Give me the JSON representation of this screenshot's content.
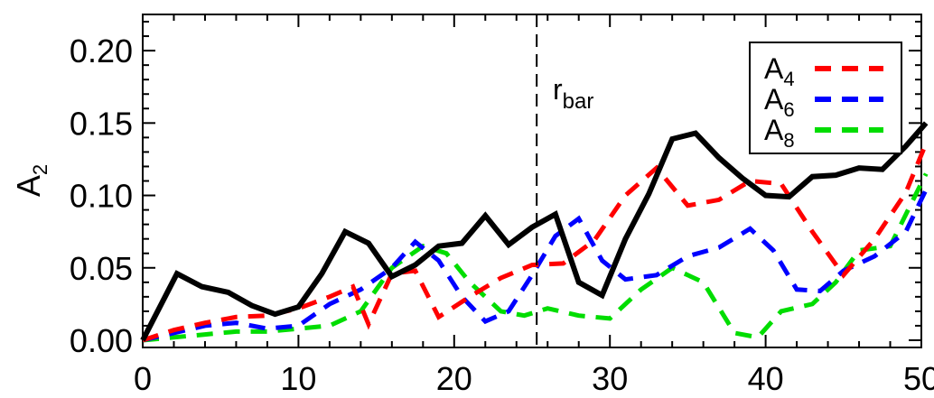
{
  "chart_data": {
    "type": "line",
    "title": "",
    "xlabel": "",
    "ylabel": {
      "main": "A",
      "sub": "2"
    },
    "xlim": [
      0,
      50
    ],
    "ylim": [
      -0.005,
      0.225
    ],
    "xticks": [
      "0",
      "10",
      "20",
      "30",
      "40",
      "50"
    ],
    "yticks": [
      "0.00",
      "0.05",
      "0.10",
      "0.15",
      "0.20"
    ],
    "grid": false,
    "legend_position": "top-right",
    "annotation": {
      "main": "r",
      "sub": "bar",
      "x": 25.3
    },
    "series": [
      {
        "color": "#000000",
        "style": "solid",
        "x": [
          0,
          2.2,
          3.8,
          5.5,
          7,
          8.5,
          10,
          11.5,
          13,
          14.5,
          16,
          17.5,
          19,
          20.5,
          22,
          23.5,
          25,
          26.5,
          28,
          29.5,
          31,
          32.5,
          34,
          35.5,
          37,
          38.5,
          40,
          41.5,
          43,
          44.5,
          46,
          47.5,
          49,
          50.5
        ],
        "y": [
          0.0,
          0.046,
          0.037,
          0.033,
          0.024,
          0.018,
          0.023,
          0.046,
          0.075,
          0.067,
          0.044,
          0.052,
          0.065,
          0.067,
          0.086,
          0.066,
          0.078,
          0.087,
          0.04,
          0.031,
          0.07,
          0.101,
          0.139,
          0.143,
          0.126,
          0.112,
          0.1,
          0.099,
          0.113,
          0.114,
          0.119,
          0.118,
          0.134,
          0.15
        ]
      },
      {
        "name": {
          "main": "A",
          "sub": "4"
        },
        "color": "#ff0000",
        "style": "dashed",
        "x": [
          0,
          2,
          4,
          6,
          8,
          10,
          12,
          13.5,
          14.5,
          16,
          17.5,
          19,
          21,
          23,
          25,
          27,
          29,
          31,
          33,
          35,
          37,
          39,
          41,
          43,
          45,
          47,
          49,
          50.5
        ],
        "y": [
          0.0,
          0.007,
          0.012,
          0.016,
          0.017,
          0.022,
          0.03,
          0.037,
          0.011,
          0.046,
          0.048,
          0.016,
          0.03,
          0.043,
          0.052,
          0.053,
          0.069,
          0.1,
          0.119,
          0.093,
          0.097,
          0.11,
          0.108,
          0.075,
          0.045,
          0.07,
          0.102,
          0.136
        ]
      },
      {
        "name": {
          "main": "A",
          "sub": "6"
        },
        "color": "#0000ff",
        "style": "dashed",
        "x": [
          0,
          2,
          4,
          6,
          8,
          10,
          12,
          14,
          16,
          17.5,
          19,
          20.5,
          22,
          23.5,
          25,
          26.5,
          28,
          29.5,
          31,
          33,
          35,
          37,
          39,
          40.5,
          42,
          43.5,
          45,
          47,
          49,
          50.5
        ],
        "y": [
          0.0,
          0.005,
          0.01,
          0.012,
          0.008,
          0.01,
          0.025,
          0.035,
          0.05,
          0.068,
          0.055,
          0.03,
          0.013,
          0.02,
          0.045,
          0.072,
          0.084,
          0.055,
          0.042,
          0.045,
          0.058,
          0.064,
          0.077,
          0.062,
          0.035,
          0.034,
          0.048,
          0.058,
          0.075,
          0.104
        ]
      },
      {
        "name": {
          "main": "A",
          "sub": "8"
        },
        "color": "#00dd00",
        "style": "dashed",
        "x": [
          0,
          2,
          4,
          6,
          8,
          10,
          12,
          14,
          16,
          18,
          19.5,
          21,
          23,
          24.5,
          26,
          28,
          30,
          32,
          34,
          36,
          38,
          39.5,
          41,
          43,
          44.5,
          46,
          48,
          50.5
        ],
        "y": [
          0.0,
          0.002,
          0.004,
          0.006,
          0.006,
          0.008,
          0.01,
          0.02,
          0.05,
          0.065,
          0.06,
          0.04,
          0.02,
          0.017,
          0.022,
          0.017,
          0.015,
          0.035,
          0.05,
          0.04,
          0.005,
          0.002,
          0.02,
          0.025,
          0.04,
          0.062,
          0.065,
          0.115
        ]
      }
    ]
  }
}
